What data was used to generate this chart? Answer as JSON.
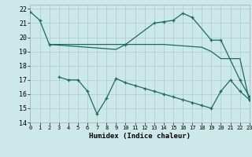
{
  "background_color": "#cce8e8",
  "grid_color": "#aacccc",
  "line_color": "#1a6b60",
  "xlabel": "Humidex (Indice chaleur)",
  "xlim": [
    0,
    23
  ],
  "ylim": [
    14,
    22.3
  ],
  "yticks": [
    14,
    15,
    16,
    17,
    18,
    19,
    20,
    21,
    22
  ],
  "xticks": [
    0,
    1,
    2,
    3,
    4,
    5,
    6,
    7,
    8,
    9,
    10,
    11,
    12,
    13,
    14,
    15,
    16,
    17,
    18,
    19,
    20,
    21,
    22,
    23
  ],
  "line1_x": [
    0,
    1,
    2,
    10,
    13,
    14,
    15,
    16,
    17,
    19,
    20,
    22,
    23
  ],
  "line1_y": [
    21.8,
    21.2,
    19.5,
    19.5,
    21.0,
    21.1,
    21.2,
    21.7,
    21.4,
    19.8,
    19.8,
    17.0,
    15.8
  ],
  "line2_x": [
    2,
    3,
    4,
    5,
    6,
    7,
    8,
    9,
    10,
    11,
    12,
    13,
    14,
    15,
    16,
    17,
    18,
    19,
    20,
    21,
    22,
    23
  ],
  "line2_y": [
    19.5,
    19.45,
    19.4,
    19.35,
    19.3,
    19.25,
    19.2,
    19.15,
    19.5,
    19.5,
    19.5,
    19.5,
    19.5,
    19.45,
    19.4,
    19.35,
    19.3,
    19.0,
    18.5,
    18.5,
    18.5,
    15.5
  ],
  "line3_x": [
    3,
    4,
    5,
    6,
    7,
    8,
    9,
    10,
    11,
    12,
    13,
    14,
    15,
    16,
    17,
    18,
    19,
    20,
    21,
    22,
    23
  ],
  "line3_y": [
    17.2,
    17.0,
    17.0,
    16.2,
    14.6,
    15.7,
    17.1,
    16.8,
    16.6,
    16.4,
    16.2,
    16.0,
    15.8,
    15.6,
    15.4,
    15.2,
    15.0,
    16.2,
    17.0,
    16.2,
    15.6
  ]
}
